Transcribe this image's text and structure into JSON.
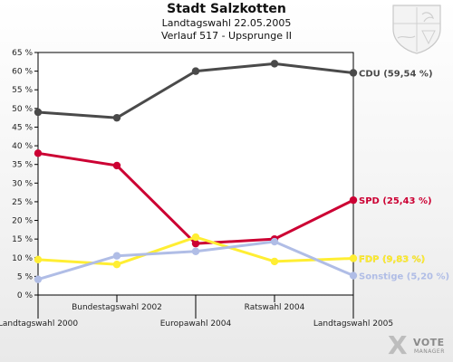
{
  "header": {
    "title": "Stadt Salzkotten",
    "subtitle1": "Landtagswahl 22.05.2005",
    "subtitle2": "Verlauf 517 - Upsprunge II"
  },
  "logo": {
    "mark": "X",
    "line1": "VOTE",
    "line2": "MANAGER"
  },
  "colors": {
    "cdu": "#4a4a4a",
    "spd": "#cc0033",
    "fdp": "#ffee33",
    "sonstige": "#b0bde6"
  },
  "chart_data": {
    "type": "line",
    "title": "Stadt Salzkotten",
    "categories": [
      "Landtagswahl 2000",
      "Bundestagswahl 2002",
      "Europawahl 2004",
      "Ratswahl 2004",
      "Landtagswahl 2005"
    ],
    "ylim": [
      0,
      65
    ],
    "yticks": [
      0,
      5,
      10,
      15,
      20,
      25,
      30,
      35,
      40,
      45,
      50,
      55,
      60,
      65
    ],
    "ytick_labels": [
      "0 %",
      "5 %",
      "10 %",
      "15 %",
      "20 %",
      "25 %",
      "30 %",
      "35 %",
      "40 %",
      "45 %",
      "50 %",
      "55 %",
      "60 %",
      "65 %"
    ],
    "grid": false,
    "series": [
      {
        "name": "CDU",
        "color": "#4a4a4a",
        "values": [
          49,
          47.5,
          60,
          62,
          59.54
        ],
        "end_label": "CDU (59,54 %)"
      },
      {
        "name": "SPD",
        "color": "#cc0033",
        "values": [
          38,
          34.7,
          13.8,
          15,
          25.43
        ],
        "end_label": "SPD (25,43 %)"
      },
      {
        "name": "FDP",
        "color": "#ffee33",
        "values": [
          9.5,
          8.2,
          15.5,
          9,
          9.83
        ],
        "end_label": "FDP (9,83 %)"
      },
      {
        "name": "Sonstige",
        "color": "#b0bde6",
        "values": [
          4.2,
          10.5,
          11.7,
          14.3,
          5.2
        ],
        "end_label": "Sonstige (5,20 %)"
      }
    ]
  }
}
